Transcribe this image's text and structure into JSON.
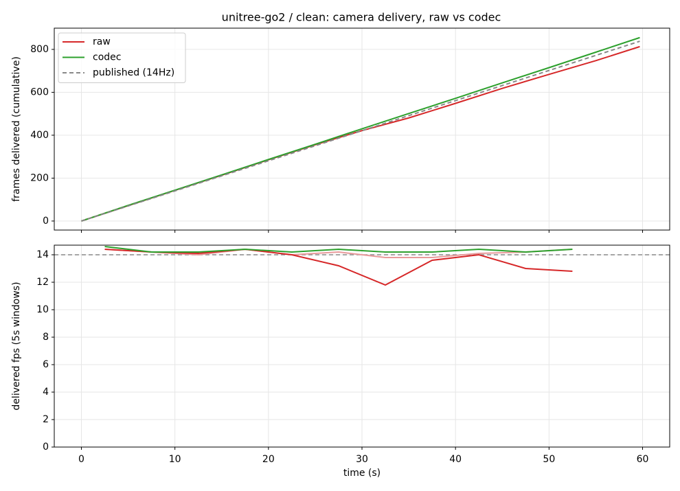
{
  "chart_data": [
    {
      "type": "line",
      "title": "unitree-go2 / clean: camera delivery, raw vs codec",
      "ylabel": "frames delivered (cumulative)",
      "xlim": [
        -2.9,
        62.9
      ],
      "xticks": [
        0,
        10,
        20,
        30,
        40,
        50,
        60
      ],
      "show_xtick_labels": false,
      "ylim": [
        -42,
        899
      ],
      "yticks": [
        0,
        200,
        400,
        600,
        800
      ],
      "grid": true,
      "legend": "upper left",
      "series": [
        {
          "name": "raw",
          "color": "#d62728",
          "x": [
            0,
            5,
            10,
            15,
            20,
            25,
            30,
            35,
            40,
            45,
            50,
            55,
            59.7
          ],
          "values": [
            0,
            72,
            143,
            213.5,
            285.5,
            355.5,
            421.5,
            480.5,
            548.5,
            618.5,
            683.5,
            747.5,
            813
          ]
        },
        {
          "name": "codec",
          "color": "#2ca02c",
          "x": [
            0,
            5,
            10,
            15,
            20,
            25,
            30,
            35,
            40,
            45,
            50,
            55,
            59.7
          ],
          "values": [
            0,
            73,
            144,
            215,
            287,
            358,
            430,
            501,
            572,
            644,
            715,
            787,
            855
          ]
        },
        {
          "name": "published (14Hz)",
          "color": "#888888",
          "dash": true,
          "x": [
            0,
            59.7
          ],
          "values": [
            0,
            838
          ]
        }
      ]
    },
    {
      "type": "line",
      "xlabel": "time (s)",
      "ylabel": "delivered fps (5s windows)",
      "xlim": [
        -2.9,
        62.9
      ],
      "xticks": [
        0,
        10,
        20,
        30,
        40,
        50,
        60
      ],
      "ylim": [
        0,
        14.7
      ],
      "yticks": [
        0,
        2,
        4,
        6,
        8,
        10,
        12,
        14
      ],
      "grid": true,
      "hline": {
        "value": 14,
        "color": "#888888",
        "dash": true
      },
      "x": [
        2.5,
        7.5,
        12.5,
        17.5,
        22.5,
        27.5,
        32.5,
        37.5,
        42.5,
        47.5,
        52.5
      ],
      "series": [
        {
          "color": "#e89a9b",
          "values": [
            14.4,
            14.2,
            14.0,
            14.4,
            14.0,
            14.2,
            13.8,
            13.8,
            14.1,
            14.2,
            14.4
          ]
        },
        {
          "name": "raw",
          "color": "#d62728",
          "values": [
            14.4,
            14.2,
            14.1,
            14.4,
            14.0,
            13.2,
            11.8,
            13.6,
            14.0,
            13.0,
            12.8
          ]
        },
        {
          "name": "codec",
          "color": "#2ca02c",
          "values": [
            14.6,
            14.2,
            14.2,
            14.4,
            14.2,
            14.4,
            14.2,
            14.2,
            14.4,
            14.2,
            14.4
          ]
        }
      ]
    }
  ]
}
